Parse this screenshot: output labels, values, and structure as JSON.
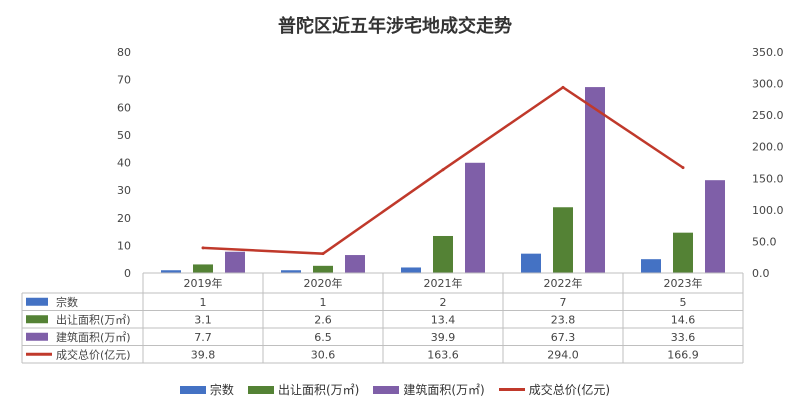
{
  "chart_data": {
    "type": "bar",
    "title": "普陀区近五年涉宅地成交走势",
    "categories": [
      "2019年",
      "2020年",
      "2021年",
      "2022年",
      "2023年"
    ],
    "series": [
      {
        "name": "宗数",
        "type": "bar",
        "axis": "left",
        "color": "#4472C4",
        "values": [
          1,
          1,
          2,
          7,
          5
        ],
        "display": [
          "1",
          "1",
          "2",
          "7",
          "5"
        ]
      },
      {
        "name": "出让面积(万㎡)",
        "type": "bar",
        "axis": "left",
        "color": "#548235",
        "values": [
          3.1,
          2.6,
          13.4,
          23.8,
          14.6
        ],
        "display": [
          "3.1",
          "2.6",
          "13.4",
          "23.8",
          "14.6"
        ]
      },
      {
        "name": "建筑面积(万㎡)",
        "type": "bar",
        "axis": "left",
        "color": "#7F5FA8",
        "values": [
          7.7,
          6.5,
          39.9,
          67.3,
          33.6
        ],
        "display": [
          "7.7",
          "6.5",
          "39.9",
          "67.3",
          "33.6"
        ]
      },
      {
        "name": "成交总价(亿元)",
        "type": "line",
        "axis": "right",
        "color": "#C0392B",
        "values": [
          39.8,
          30.6,
          163.6,
          294.0,
          166.9
        ],
        "display": [
          "39.8",
          "30.6",
          "163.6",
          "294.0",
          "166.9"
        ]
      }
    ],
    "y_left": {
      "min": 0,
      "max": 80,
      "ticks": [
        "0",
        "10",
        "20",
        "30",
        "40",
        "50",
        "60",
        "70",
        "80"
      ]
    },
    "y_right": {
      "min": 0,
      "max": 350,
      "ticks": [
        "0.0",
        "50.0",
        "100.0",
        "150.0",
        "200.0",
        "250.0",
        "300.0",
        "350.0"
      ]
    },
    "grid": false,
    "legend": "bottom",
    "data_table": true
  }
}
